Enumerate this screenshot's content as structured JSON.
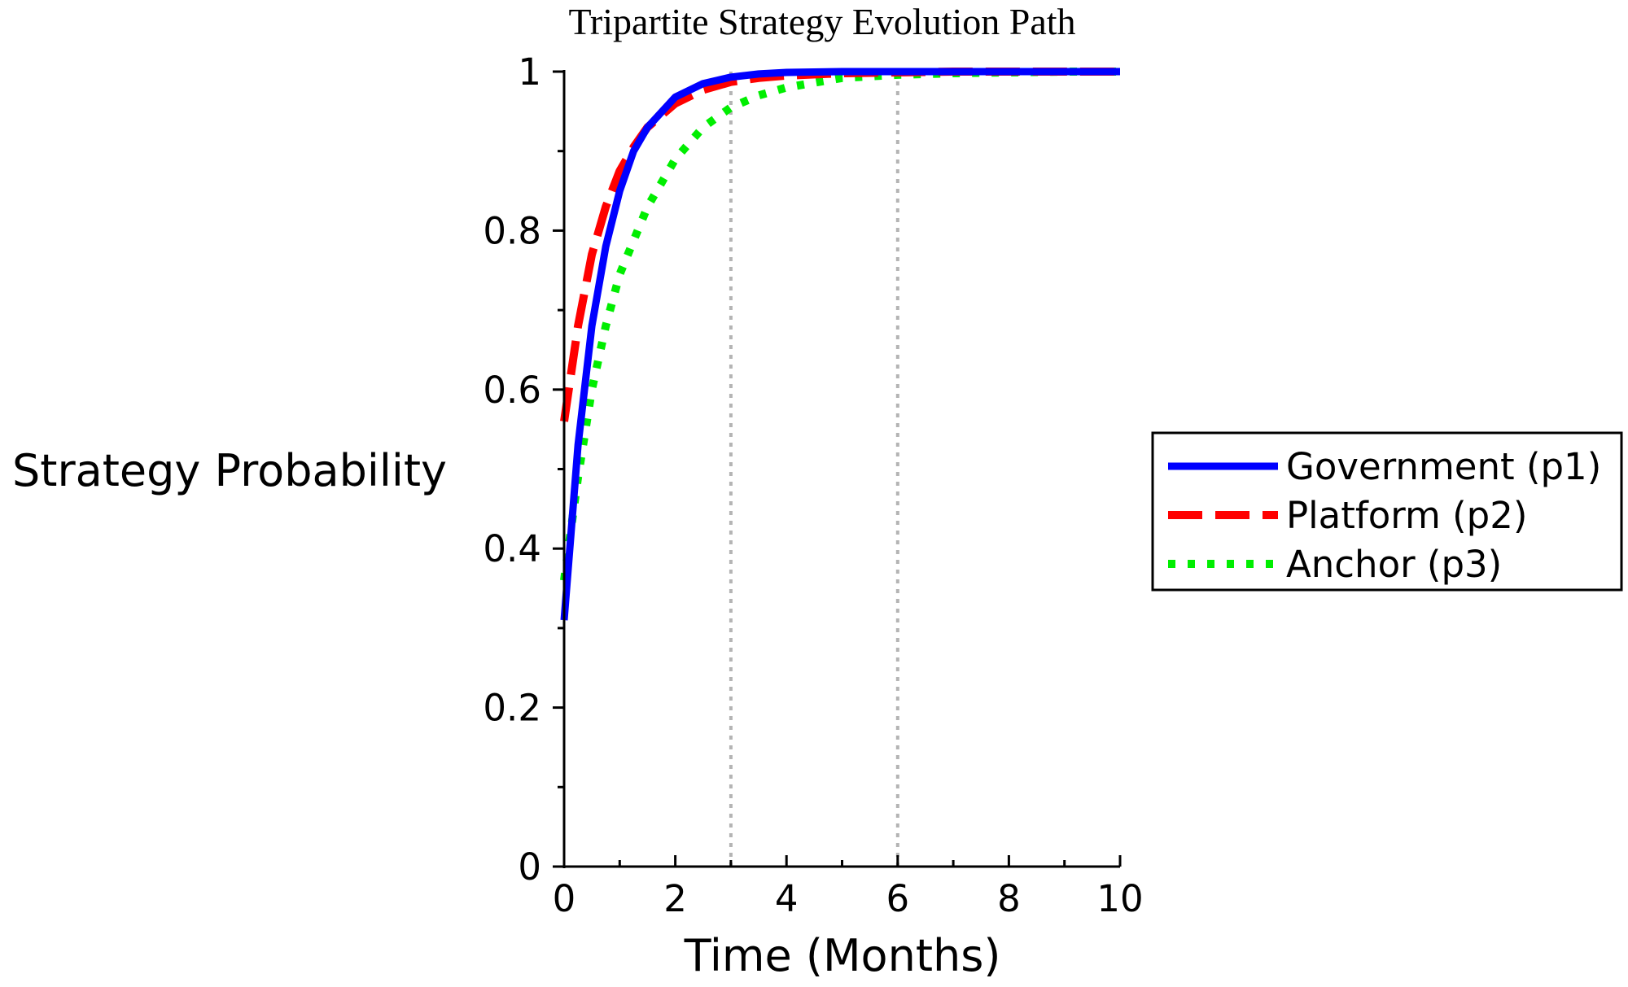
{
  "chart_data": {
    "type": "line",
    "title": "Tripartite Strategy Evolution Path",
    "xlabel": "Time (Months)",
    "ylabel": "Strategy Probability",
    "xlim": [
      0,
      10
    ],
    "ylim": [
      0,
      1
    ],
    "xticks": [
      0,
      2,
      4,
      6,
      8,
      10
    ],
    "yticks": [
      0,
      0.2,
      0.4,
      0.6,
      0.8,
      1
    ],
    "xtick_labels": [
      "0",
      "2",
      "4",
      "6",
      "8",
      "10"
    ],
    "ytick_labels": [
      "0",
      "0.2",
      "0.4",
      "0.6",
      "0.8",
      "1"
    ],
    "reference_lines_x": [
      3,
      6
    ],
    "legend_position": "right",
    "series": [
      {
        "name": "Government (p1)",
        "color": "#0000ff",
        "style": "solid",
        "x": [
          0,
          0.25,
          0.5,
          0.75,
          1,
          1.25,
          1.5,
          2,
          2.5,
          3,
          3.5,
          4,
          5,
          6,
          7,
          8,
          9,
          10
        ],
        "y": [
          0.31,
          0.53,
          0.68,
          0.78,
          0.85,
          0.9,
          0.93,
          0.968,
          0.985,
          0.993,
          0.997,
          0.999,
          1,
          1,
          1,
          1,
          1,
          1
        ]
      },
      {
        "name": "Platform (p2)",
        "color": "#ff0000",
        "style": "dashed",
        "x": [
          0,
          0.25,
          0.5,
          0.75,
          1,
          1.25,
          1.5,
          2,
          2.5,
          3,
          3.5,
          4,
          5,
          6,
          7,
          8,
          9,
          10
        ],
        "y": [
          0.56,
          0.68,
          0.77,
          0.83,
          0.875,
          0.905,
          0.93,
          0.96,
          0.977,
          0.987,
          0.992,
          0.995,
          0.998,
          0.999,
          1,
          1,
          1,
          1
        ]
      },
      {
        "name": "Anchor (p3)",
        "color": "#00ee00",
        "style": "dotted",
        "x": [
          0,
          0.25,
          0.5,
          0.75,
          1,
          1.5,
          2,
          2.5,
          3,
          3.5,
          4,
          5,
          6,
          7,
          8,
          9,
          10
        ],
        "y": [
          0.36,
          0.49,
          0.6,
          0.68,
          0.745,
          0.83,
          0.89,
          0.93,
          0.955,
          0.97,
          0.98,
          0.992,
          0.996,
          0.998,
          0.999,
          1,
          1
        ]
      }
    ]
  }
}
